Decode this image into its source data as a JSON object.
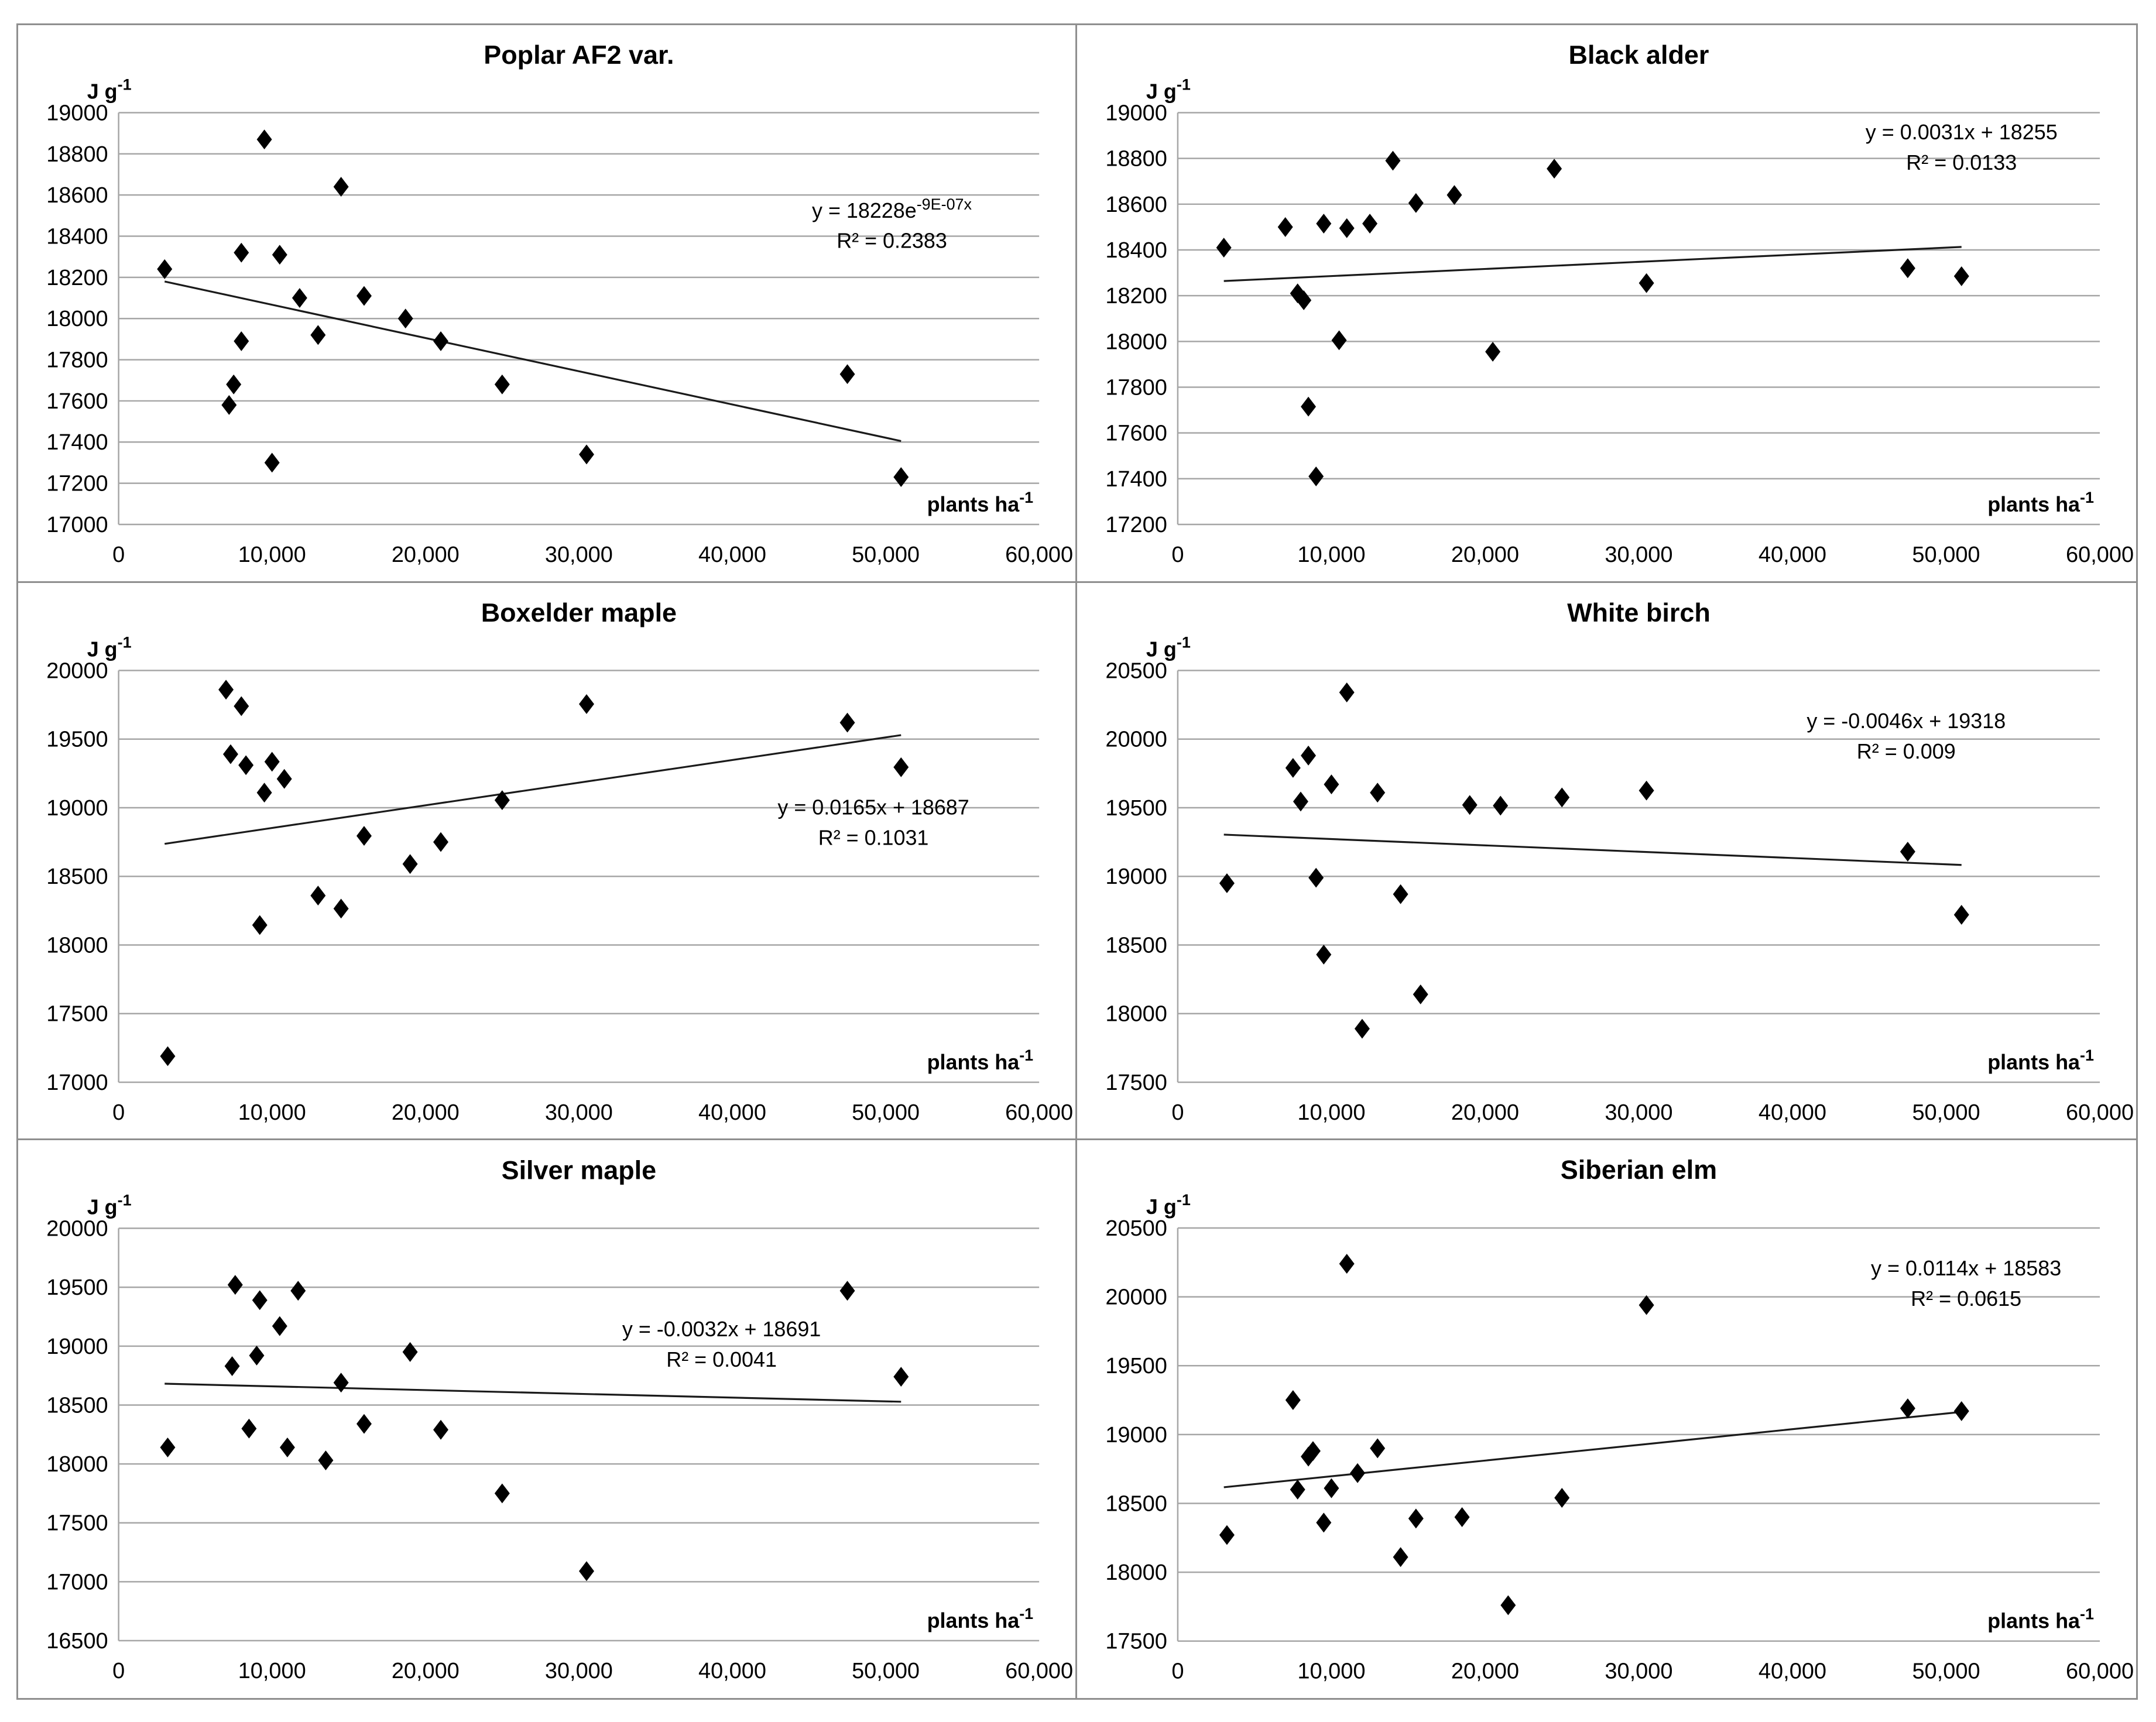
{
  "figure": {
    "background": "#ffffff",
    "border_color": "#8f8f8f",
    "grid_color": "#a6a6a6",
    "axis_color": "#a6a6a6",
    "marker_color": "#000000",
    "trendline_color": "#1a1a1a",
    "text_color": "#000000",
    "y_unit": {
      "base": "J g",
      "sup": "-1"
    },
    "x_unit": {
      "base": "plants ha",
      "sup": "-1"
    }
  },
  "chart_data": [
    {
      "type": "scatter",
      "title": "Poplar AF2 var.",
      "ylabel": "J g⁻¹",
      "xlabel": "plants ha⁻¹",
      "xlim": [
        0,
        60000
      ],
      "ylim": [
        17000,
        19000
      ],
      "xticks": [
        0,
        10000,
        20000,
        30000,
        40000,
        50000,
        60000
      ],
      "xtick_labels": [
        "0",
        "10,000",
        "20,000",
        "30,000",
        "40,000",
        "50,000",
        "60,000"
      ],
      "yticks": [
        17000,
        17200,
        17400,
        17600,
        17800,
        18000,
        18200,
        18400,
        18600,
        18800,
        19000
      ],
      "equation": {
        "base": "y = 18228e",
        "sup": "-9E-07x"
      },
      "r_squared": "R² = 0.2383",
      "eq_anchor": [
        0.84,
        0.255
      ],
      "trendline": {
        "x1": 3000,
        "y1": 18180,
        "x2": 51000,
        "y2": 17405
      },
      "points": [
        [
          3000,
          18240
        ],
        [
          7200,
          17580
        ],
        [
          7500,
          17680
        ],
        [
          8000,
          17890
        ],
        [
          8000,
          18320
        ],
        [
          9500,
          18870
        ],
        [
          10000,
          17300
        ],
        [
          10500,
          18310
        ],
        [
          11800,
          18100
        ],
        [
          13000,
          17920
        ],
        [
          14500,
          18640
        ],
        [
          16000,
          18110
        ],
        [
          18700,
          18000
        ],
        [
          21000,
          17890
        ],
        [
          25000,
          17680
        ],
        [
          30500,
          17340
        ],
        [
          47500,
          17730
        ],
        [
          51000,
          17230
        ]
      ]
    },
    {
      "type": "scatter",
      "title": "Black alder",
      "ylabel": "J g⁻¹",
      "xlabel": "plants ha⁻¹",
      "xlim": [
        0,
        60000
      ],
      "ylim": [
        17200,
        19000
      ],
      "xticks": [
        0,
        10000,
        20000,
        30000,
        40000,
        50000,
        60000
      ],
      "xtick_labels": [
        "0",
        "10,000",
        "20,000",
        "30,000",
        "40,000",
        "50,000",
        "60,000"
      ],
      "yticks": [
        17200,
        17400,
        17600,
        17800,
        18000,
        18200,
        18400,
        18600,
        18800,
        19000
      ],
      "equation": {
        "base": "y = 0.0031x + 18255",
        "sup": ""
      },
      "r_squared": "R² = 0.0133",
      "eq_anchor": [
        0.85,
        0.065
      ],
      "trendline": {
        "x1": 3000,
        "y1": 18264,
        "x2": 51000,
        "y2": 18413
      },
      "points": [
        [
          3000,
          18410
        ],
        [
          7000,
          18500
        ],
        [
          7800,
          18210
        ],
        [
          8200,
          18180
        ],
        [
          8500,
          17715
        ],
        [
          9000,
          17410
        ],
        [
          9500,
          18515
        ],
        [
          10500,
          18005
        ],
        [
          11000,
          18495
        ],
        [
          12500,
          18515
        ],
        [
          14000,
          18790
        ],
        [
          15500,
          18605
        ],
        [
          18000,
          18640
        ],
        [
          20500,
          17955
        ],
        [
          24500,
          18755
        ],
        [
          30500,
          18255
        ],
        [
          47500,
          18320
        ],
        [
          51000,
          18285
        ]
      ]
    },
    {
      "type": "scatter",
      "title": "Boxelder maple",
      "ylabel": "J g⁻¹",
      "xlabel": "plants ha⁻¹",
      "xlim": [
        0,
        60000
      ],
      "ylim": [
        17000,
        20000
      ],
      "xticks": [
        0,
        10000,
        20000,
        30000,
        40000,
        50000,
        60000
      ],
      "xtick_labels": [
        "0",
        "10,000",
        "20,000",
        "30,000",
        "40,000",
        "50,000",
        "60,000"
      ],
      "yticks": [
        17000,
        17500,
        18000,
        18500,
        19000,
        19500,
        20000
      ],
      "equation": {
        "base": "y = 0.0165x + 18687",
        "sup": ""
      },
      "r_squared": "R² = 0.1031",
      "eq_anchor": [
        0.82,
        0.35
      ],
      "trendline": {
        "x1": 3000,
        "y1": 18737,
        "x2": 51000,
        "y2": 19529
      },
      "points": [
        [
          3200,
          17190
        ],
        [
          7000,
          19860
        ],
        [
          7300,
          19390
        ],
        [
          8000,
          19740
        ],
        [
          8300,
          19310
        ],
        [
          9200,
          18145
        ],
        [
          9500,
          19110
        ],
        [
          10000,
          19335
        ],
        [
          10800,
          19210
        ],
        [
          13000,
          18360
        ],
        [
          14500,
          18265
        ],
        [
          16000,
          18795
        ],
        [
          19000,
          18590
        ],
        [
          21000,
          18750
        ],
        [
          25000,
          19055
        ],
        [
          30500,
          19755
        ],
        [
          47500,
          19620
        ],
        [
          51000,
          19295
        ]
      ]
    },
    {
      "type": "scatter",
      "title": "White birch",
      "ylabel": "J g⁻¹",
      "xlabel": "plants ha⁻¹",
      "xlim": [
        0,
        60000
      ],
      "ylim": [
        17500,
        20500
      ],
      "xticks": [
        0,
        10000,
        20000,
        30000,
        40000,
        50000,
        60000
      ],
      "xtick_labels": [
        "0",
        "10,000",
        "20,000",
        "30,000",
        "40,000",
        "50,000",
        "60,000"
      ],
      "yticks": [
        17500,
        18000,
        18500,
        19000,
        19500,
        20000,
        20500
      ],
      "equation": {
        "base": "y = -0.0046x + 19318",
        "sup": ""
      },
      "r_squared": "R² = 0.009",
      "eq_anchor": [
        0.79,
        0.14
      ],
      "trendline": {
        "x1": 3000,
        "y1": 19304,
        "x2": 51000,
        "y2": 19083
      },
      "points": [
        [
          3200,
          18950
        ],
        [
          7500,
          19790
        ],
        [
          8000,
          19545
        ],
        [
          8500,
          19880
        ],
        [
          9000,
          18990
        ],
        [
          9500,
          18430
        ],
        [
          10000,
          19670
        ],
        [
          11000,
          20340
        ],
        [
          12000,
          17890
        ],
        [
          13000,
          19610
        ],
        [
          14500,
          18870
        ],
        [
          15800,
          18140
        ],
        [
          19000,
          19520
        ],
        [
          21000,
          19515
        ],
        [
          25000,
          19575
        ],
        [
          30500,
          19625
        ],
        [
          47500,
          19180
        ],
        [
          51000,
          18720
        ]
      ]
    },
    {
      "type": "scatter",
      "title": "Silver maple",
      "ylabel": "J g⁻¹",
      "xlabel": "plants ha⁻¹",
      "xlim": [
        0,
        60000
      ],
      "ylim": [
        16500,
        20000
      ],
      "xticks": [
        0,
        10000,
        20000,
        30000,
        40000,
        50000,
        60000
      ],
      "xtick_labels": [
        "0",
        "10,000",
        "20,000",
        "30,000",
        "40,000",
        "50,000",
        "60,000"
      ],
      "yticks": [
        16500,
        17000,
        17500,
        18000,
        18500,
        19000,
        19500,
        20000
      ],
      "equation": {
        "base": "y = -0.0032x + 18691",
        "sup": ""
      },
      "r_squared": "R² = 0.0041",
      "eq_anchor": [
        0.655,
        0.262
      ],
      "trendline": {
        "x1": 3000,
        "y1": 18681,
        "x2": 51000,
        "y2": 18528
      },
      "points": [
        [
          3200,
          18140
        ],
        [
          7400,
          18830
        ],
        [
          7600,
          19520
        ],
        [
          8500,
          18300
        ],
        [
          9000,
          18920
        ],
        [
          9200,
          19390
        ],
        [
          10500,
          19170
        ],
        [
          11000,
          18140
        ],
        [
          11700,
          19470
        ],
        [
          13500,
          18030
        ],
        [
          14500,
          18690
        ],
        [
          16000,
          18340
        ],
        [
          19000,
          18950
        ],
        [
          21000,
          18290
        ],
        [
          25000,
          17750
        ],
        [
          30500,
          17090
        ],
        [
          47500,
          19470
        ],
        [
          51000,
          18740
        ]
      ]
    },
    {
      "type": "scatter",
      "title": "Siberian elm",
      "ylabel": "J g⁻¹",
      "xlabel": "plants ha⁻¹",
      "xlim": [
        0,
        60000
      ],
      "ylim": [
        17500,
        20500
      ],
      "xticks": [
        0,
        10000,
        20000,
        30000,
        40000,
        50000,
        60000
      ],
      "xtick_labels": [
        "0",
        "10,000",
        "20,000",
        "30,000",
        "40,000",
        "50,000",
        "60,000"
      ],
      "yticks": [
        17500,
        18000,
        18500,
        19000,
        19500,
        20000,
        20500
      ],
      "equation": {
        "base": "y = 0.0114x + 18583",
        "sup": ""
      },
      "r_squared": "R² = 0.0615",
      "eq_anchor": [
        0.855,
        0.115
      ],
      "trendline": {
        "x1": 3000,
        "y1": 18617,
        "x2": 51000,
        "y2": 19164
      },
      "points": [
        [
          3200,
          18270
        ],
        [
          7500,
          19250
        ],
        [
          7800,
          18600
        ],
        [
          8500,
          18840
        ],
        [
          8800,
          18880
        ],
        [
          9500,
          18360
        ],
        [
          10000,
          18610
        ],
        [
          11000,
          20240
        ],
        [
          11700,
          18720
        ],
        [
          13000,
          18900
        ],
        [
          14500,
          18110
        ],
        [
          15500,
          18390
        ],
        [
          18500,
          18400
        ],
        [
          21500,
          17760
        ],
        [
          25000,
          18540
        ],
        [
          30500,
          19940
        ],
        [
          47500,
          19190
        ],
        [
          51000,
          19170
        ]
      ]
    }
  ]
}
